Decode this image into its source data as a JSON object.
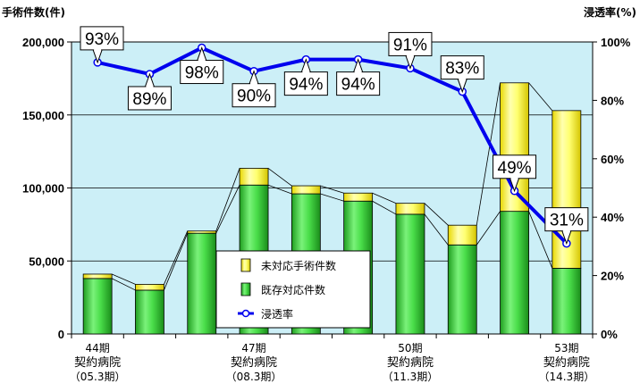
{
  "chart_data": {
    "type": "bar+line",
    "y_left_title": "手術件数(件)",
    "y_right_title": "浸透率(%)",
    "y_left_ticks": [
      "0",
      "50,000",
      "100,000",
      "150,000",
      "200,000"
    ],
    "y_right_ticks": [
      "0%",
      "20%",
      "40%",
      "60%",
      "80%",
      "100%"
    ],
    "ylim_left": [
      0,
      200000
    ],
    "ylim_right": [
      0,
      100
    ],
    "x_labels": [
      {
        "index": 0,
        "lines": [
          "44期",
          "契約病院",
          "（05.3期）"
        ]
      },
      {
        "index": 3,
        "lines": [
          "47期",
          "契約病院",
          "（08.3期）"
        ]
      },
      {
        "index": 6,
        "lines": [
          "50期",
          "契約病院",
          "（11.3期）"
        ]
      },
      {
        "index": 9,
        "lines": [
          "53期",
          "契約病院",
          "（14.3期）"
        ]
      }
    ],
    "stacked": true,
    "series": [
      {
        "name": "既存対応件数",
        "color": "#33cc33",
        "values": [
          38000,
          30000,
          69000,
          102000,
          96000,
          91000,
          82000,
          61000,
          84000,
          45000
        ]
      },
      {
        "name": "未対応手術件数",
        "color": "#ffff66",
        "values": [
          3000,
          4000,
          1500,
          11500,
          5500,
          5500,
          7500,
          13500,
          88000,
          108000
        ]
      }
    ],
    "line_series": {
      "name": "浸透率",
      "color": "#0000ee",
      "values": [
        93,
        89,
        98,
        90,
        94,
        94,
        91,
        83,
        49,
        31
      ],
      "labels": [
        "93%",
        "89%",
        "98%",
        "90%",
        "94%",
        "94%",
        "91%",
        "83%",
        "49%",
        "31%"
      ],
      "label_side": [
        "above",
        "below",
        "below",
        "below",
        "below",
        "below",
        "above",
        "above",
        "above",
        "above"
      ]
    },
    "legend": {
      "items": [
        {
          "label": "未対応手術件数",
          "marker": "bar",
          "color": "#ffff66"
        },
        {
          "label": "既存対応件数",
          "marker": "bar",
          "color": "#33cc33"
        },
        {
          "label": "浸透率",
          "marker": "line-point",
          "color": "#0000ee"
        }
      ]
    },
    "plot_background": "#cceff7",
    "grid": true
  }
}
